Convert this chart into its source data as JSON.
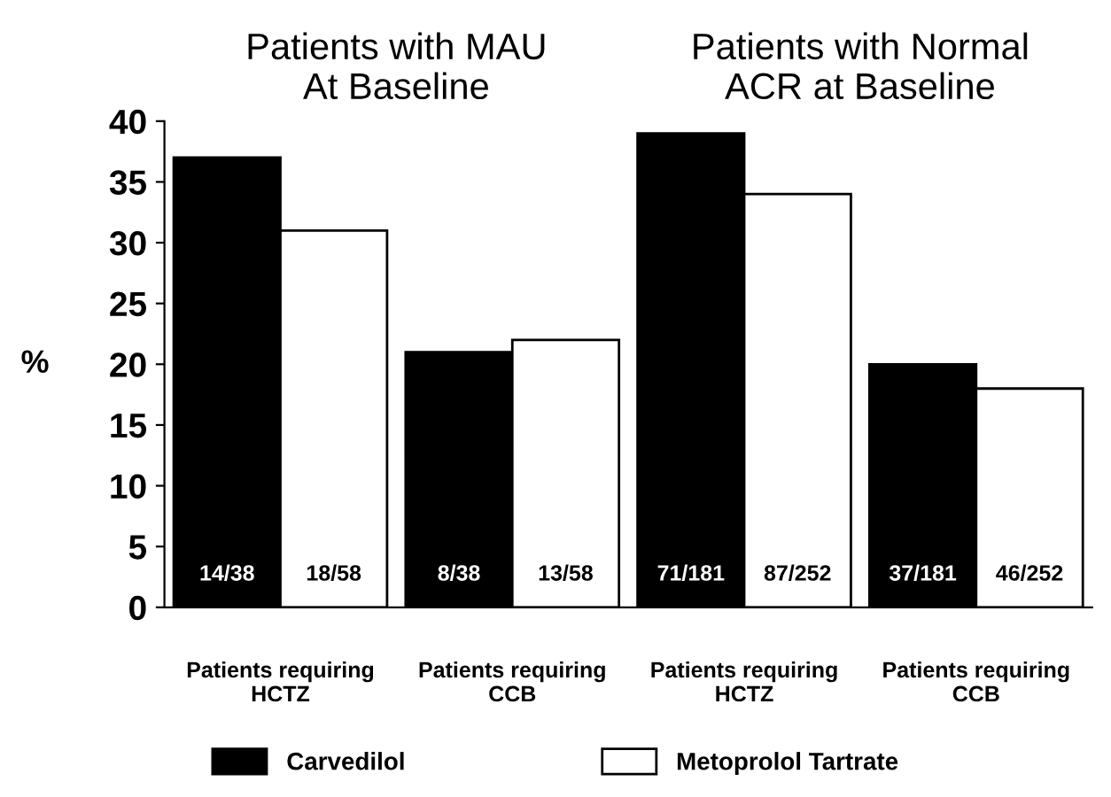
{
  "chart_data": {
    "type": "bar",
    "ylabel": "%",
    "categories": [
      "Patients requiring\nHCTZ",
      "Patients requiring\nCCB",
      "Patients requiring\nHCTZ",
      "Patients requiring\nCCB"
    ],
    "series": [
      {
        "name": "Carvedilol",
        "color": "#000000",
        "values": [
          37,
          21,
          39,
          20
        ],
        "value_labels": [
          "14/38",
          "8/38",
          "71/181",
          "37/181"
        ]
      },
      {
        "name": "Metoprolol Tartrate",
        "color": "#ffffff",
        "values": [
          31,
          22,
          34,
          18
        ],
        "value_labels": [
          "18/58",
          "13/58",
          "87/252",
          "46/252"
        ]
      }
    ],
    "annotations": [
      "Patients with MAU\nAt Baseline",
      "Patients with Normal\nACR at Baseline"
    ],
    "ylim": [
      0,
      40
    ],
    "yticks": [
      0,
      5,
      10,
      15,
      20,
      25,
      30,
      35,
      40
    ],
    "grid": false,
    "legend": "bottom"
  }
}
